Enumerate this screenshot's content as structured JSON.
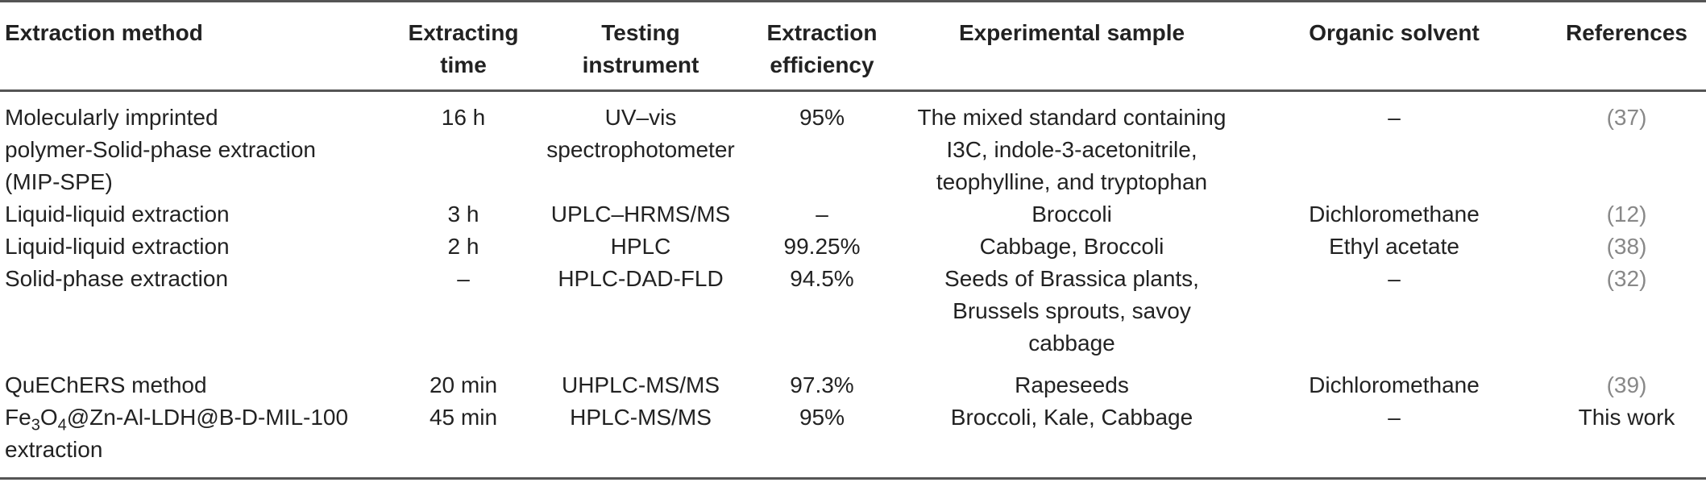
{
  "table": {
    "headers": [
      "Extraction method",
      "Extracting time",
      "Testing instrument",
      "Extraction efficiency",
      "Experimental sample",
      "Organic solvent",
      "References"
    ],
    "rows": [
      {
        "method_lines": [
          "Molecularly imprinted",
          "polymer-Solid-phase extraction",
          "(MIP-SPE)"
        ],
        "time": "16 h",
        "instrument_lines": [
          "UV–vis",
          "spectrophotometer"
        ],
        "efficiency": "95%",
        "sample_lines": [
          "The mixed standard containing",
          "I3C, indole-3-acetonitrile,",
          "teophylline, and tryptophan"
        ],
        "solvent": "–",
        "reference": "(37)"
      },
      {
        "method_lines": [
          "Liquid-liquid extraction"
        ],
        "time": "3 h",
        "instrument_lines": [
          "UPLC–HRMS/MS"
        ],
        "efficiency": "–",
        "sample_lines": [
          "Broccoli"
        ],
        "solvent": "Dichloromethane",
        "reference": "(12)"
      },
      {
        "method_lines": [
          "Liquid-liquid extraction"
        ],
        "time": "2 h",
        "instrument_lines": [
          "HPLC"
        ],
        "efficiency": "99.25%",
        "sample_lines": [
          "Cabbage, Broccoli"
        ],
        "solvent": "Ethyl acetate",
        "reference": "(38)"
      },
      {
        "method_lines": [
          "Solid-phase extraction"
        ],
        "time": "–",
        "instrument_lines": [
          "HPLC-DAD-FLD"
        ],
        "efficiency": "94.5%",
        "sample_lines": [
          "Seeds of Brassica plants,",
          "Brussels sprouts, savoy",
          "cabbage"
        ],
        "solvent": "–",
        "reference": "(32)"
      },
      {
        "method_lines": [
          "QuEChERS method"
        ],
        "time": "20 min",
        "instrument_lines": [
          "UHPLC-MS/MS"
        ],
        "efficiency": "97.3%",
        "sample_lines": [
          "Rapeseeds"
        ],
        "solvent": "Dichloromethane",
        "reference": "(39)"
      },
      {
        "method_parts": {
          "fe": "Fe",
          "sub3": "3",
          "o": "O",
          "sub4": "4",
          "rest": "@Zn-Al-LDH@B-D-MIL-100",
          "line2": "extraction"
        },
        "time": "45 min",
        "instrument_lines": [
          "HPLC-MS/MS"
        ],
        "efficiency": "95%",
        "sample_lines": [
          "Broccoli, Kale, Cabbage"
        ],
        "solvent": "–",
        "reference": "This work"
      }
    ]
  }
}
